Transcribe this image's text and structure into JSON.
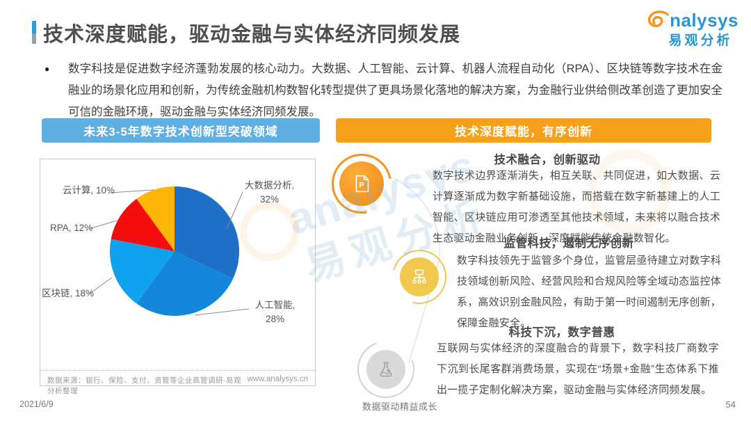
{
  "header": {
    "title": "技术深度赋能，驱动金融与实体经济同频发展"
  },
  "logo": {
    "brand": "analysys",
    "brand_cn": "易观分析"
  },
  "intro": {
    "bullet": "●",
    "text": "数字科技是促进数字经济蓬勃发展的核心动力。大数据、人工智能、云计算、机器人流程自动化（RPA）、区块链等数字技术在金融业的场景化应用和创新，为传统金融机构数智化转型提供了更具场景化落地的解决方案，为金融行业供给侧改革创造了更加安全可信的金融环境，驱动金融与实体经济同频发展。"
  },
  "left_panel": {
    "header": "未来3-5年数字技术创新型突破领域",
    "source": "数据来源：银行、保险、支付、资管等企业高管调研·易观分析整理",
    "website": "www.analysys.cn"
  },
  "chart_data": {
    "type": "pie",
    "title": "未来3-5年数字技术创新型突破领域",
    "categories": [
      "大数据分析",
      "人工智能",
      "区块链",
      "RPA",
      "云计算"
    ],
    "values": [
      32,
      28,
      18,
      12,
      10
    ],
    "unit": "%",
    "colors": [
      "#1d6fc8",
      "#1487db",
      "#0fa2ee",
      "#f50d0d",
      "#ffb606"
    ],
    "start_angle_deg": -90,
    "direction": "clockwise",
    "label_style": "callout"
  },
  "right_panel": {
    "header": "技术深度赋能，有序创新",
    "sections": [
      {
        "icon": "document-p-icon",
        "title": "技术融合，创新驱动",
        "body": "数字技术边界逐渐消失，相互关联、共同促进，如大数据、云计算逐渐成为数字新基础设施，而搭载在数字新基建上的人工智能、区块链应用可渗透至其他技术领域，未来将以融合技术生态驱动金融业务创新，深度赋能传统金融数智化。"
      },
      {
        "icon": "org-chart-icon",
        "title": "监管科技，遏制无序创新",
        "body": "数字科技领先于监管多个身位，监管层亟待建立对数字科技领域创新风险、经营风险和合规风险等全域动态监控体系，高效识别金融风险，有助于第一时间遏制无序创新，保障金融安全。"
      },
      {
        "icon": "flask-icon",
        "title": "科技下沉，数字普惠",
        "body": "互联网与实体经济的深度融合的背景下，数字科技厂商数字下沉到长尾客群消费场景，实现在“场景+金融”生态体系下推出一揽子定制化解决方案，驱动金融与实体经济同频发展。"
      }
    ]
  },
  "footer": {
    "date": "2021/6/9",
    "motto": "数据驱动精益成长",
    "page_number": "54"
  },
  "colors": {
    "accent_blue": "#5fafe3",
    "accent_orange": "#f7a01a",
    "brand_blue": "#2796d6",
    "brand_orange": "#f7941e"
  }
}
